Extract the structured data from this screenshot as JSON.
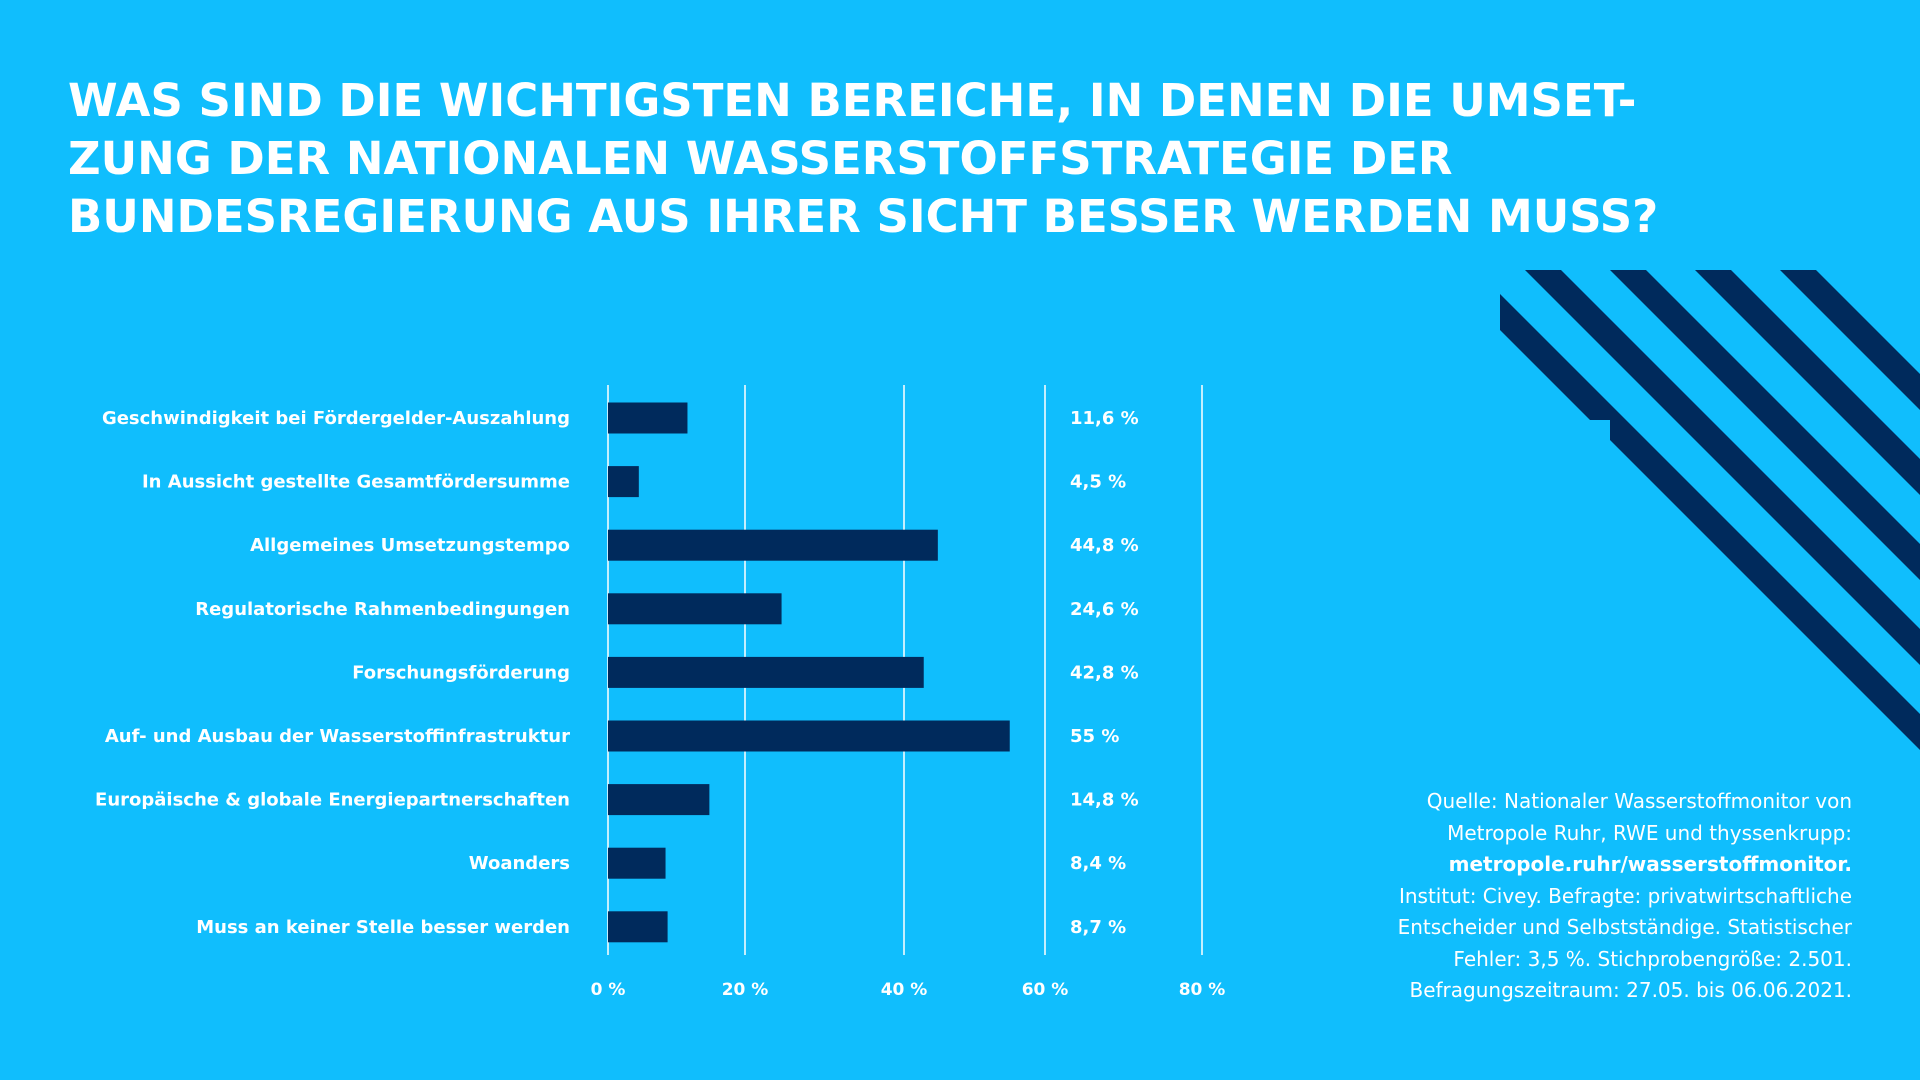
{
  "colors": {
    "background": "#10BEFD",
    "bar": "#002A5C",
    "text": "#FFFFFF",
    "grid": "#FFFFFF",
    "stripes": "#002A5C"
  },
  "title_lines": [
    "WAS SIND DIE WICHTIGSTEN BEREICHE, IN DENEN DIE UMSET-",
    "ZUNG DER NATIONALEN WASSERSTOFFSTRATEGIE DER",
    "BUNDESREGIERUNG AUS IHRER SICHT BESSER WERDEN MUSS?"
  ],
  "chart_data": {
    "type": "bar",
    "orientation": "horizontal",
    "categories": [
      "Geschwindigkeit bei Fördergelder-Auszahlung",
      "In Aussicht gestellte Gesamtfördersumme",
      "Allgemeines Umsetzungstempo",
      "Regulatorische Rahmenbedingungen",
      "Forschungsförderung",
      "Auf- und Ausbau der Wasserstoffinfrastruktur",
      "Europäische & globale Energiepartnerschaften",
      "Woanders",
      "Muss an keiner Stelle besser werden"
    ],
    "values": [
      11.6,
      4.5,
      44.8,
      24.6,
      42.8,
      55,
      14.8,
      8.4,
      8.7
    ],
    "value_labels": [
      "11,6 %",
      "4,5 %",
      "44,8 %",
      "24,6 %",
      "42,8 %",
      "55 %",
      "14,8 %",
      "8,4 %",
      "8,7 %"
    ],
    "xticks": [
      0,
      20,
      40,
      60,
      80
    ],
    "xtick_labels": [
      "0 %",
      "20 %",
      "40 %",
      "60 %",
      "80 %"
    ],
    "xlim": [
      0,
      80
    ],
    "grid": true
  },
  "source": {
    "lines": [
      "Quelle: Nationaler Wasserstoffmonitor von",
      "Metropole Ruhr, RWE und thyssenkrupp:",
      "metropole.ruhr/wasserstoffmonitor.",
      "Institut: Civey. Befragte: privatwirtschaftliche",
      "Entscheider und Selbstständige. Statistischer",
      "Fehler: 3,5 %. Stichprobengröße: 2.501.",
      "Befragungszeitraum: 27.05. bis 06.06.2021."
    ],
    "link": "metropole.ruhr/wasserstoffmonitor."
  }
}
